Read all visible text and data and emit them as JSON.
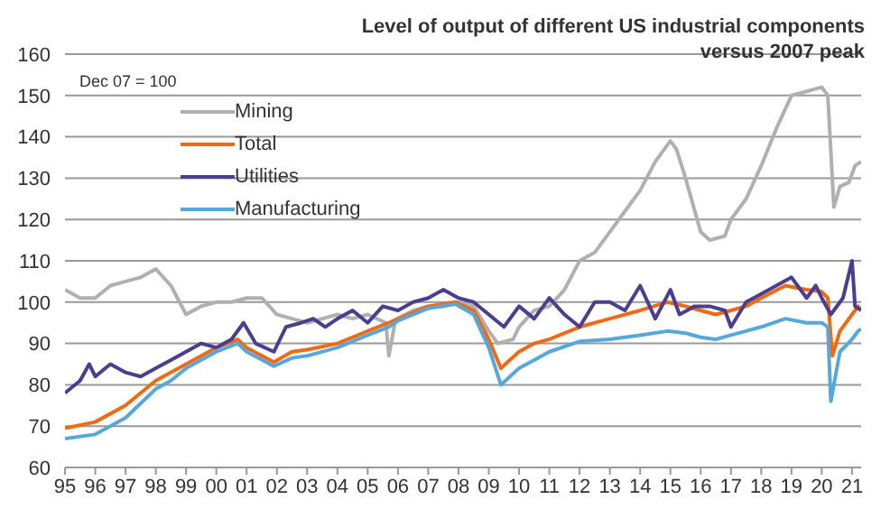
{
  "chart_data": {
    "type": "line",
    "title": "Level of output of different US industrial components versus 2007 peak",
    "annotations": [
      "Dec 07 = 100"
    ],
    "xlim": [
      1995,
      2021.3
    ],
    "xticks": [
      {
        "value": 1995,
        "label": "95"
      },
      {
        "value": 1996,
        "label": "96"
      },
      {
        "value": 1997,
        "label": "97"
      },
      {
        "value": 1998,
        "label": "98"
      },
      {
        "value": 1999,
        "label": "99"
      },
      {
        "value": 2000,
        "label": "00"
      },
      {
        "value": 2001,
        "label": "01"
      },
      {
        "value": 2002,
        "label": "02"
      },
      {
        "value": 2003,
        "label": "03"
      },
      {
        "value": 2004,
        "label": "04"
      },
      {
        "value": 2005,
        "label": "05"
      },
      {
        "value": 2006,
        "label": "06"
      },
      {
        "value": 2007,
        "label": "07"
      },
      {
        "value": 2008,
        "label": "08"
      },
      {
        "value": 2009,
        "label": "09"
      },
      {
        "value": 2010,
        "label": "10"
      },
      {
        "value": 2011,
        "label": "11"
      },
      {
        "value": 2012,
        "label": "12"
      },
      {
        "value": 2013,
        "label": "13"
      },
      {
        "value": 2014,
        "label": "14"
      },
      {
        "value": 2015,
        "label": "15"
      },
      {
        "value": 2016,
        "label": "16"
      },
      {
        "value": 2017,
        "label": "17"
      },
      {
        "value": 2018,
        "label": "18"
      },
      {
        "value": 2019,
        "label": "19"
      },
      {
        "value": 2020,
        "label": "20"
      },
      {
        "value": 2021,
        "label": "21"
      }
    ],
    "ylim": [
      60,
      160
    ],
    "yticks": [
      60,
      70,
      80,
      90,
      100,
      110,
      120,
      130,
      140,
      150,
      160
    ],
    "grid": "y",
    "legend": "top left",
    "marker": "none",
    "line_style": "solid",
    "series": [
      {
        "name": "Mining",
        "color": "#b0b0b0",
        "x": [
          1995,
          1995.5,
          1996,
          1996.5,
          1997,
          1997.5,
          1998,
          1998.5,
          1999,
          1999.5,
          2000,
          2000.5,
          2001,
          2001.5,
          2002,
          2002.5,
          2003,
          2003.5,
          2004,
          2004.5,
          2005,
          2005.6,
          2005.7,
          2005.9,
          2006,
          2006.5,
          2007,
          2007.5,
          2008,
          2008.5,
          2009,
          2009.3,
          2009.8,
          2010,
          2010.5,
          2011,
          2011.5,
          2012,
          2012.5,
          2013,
          2013.5,
          2014,
          2014.5,
          2015,
          2015.2,
          2015.5,
          2016,
          2016.3,
          2016.8,
          2017,
          2017.5,
          2018,
          2018.5,
          2019,
          2019.5,
          2020,
          2020.2,
          2020.4,
          2020.6,
          2020.9,
          2021.1,
          2021.3
        ],
        "values": [
          103,
          101,
          101,
          104,
          105,
          106,
          108,
          104,
          97,
          99,
          100,
          100,
          101,
          101,
          97,
          96,
          95,
          96,
          97,
          96,
          97,
          95,
          87,
          95,
          96,
          98,
          99,
          99,
          100,
          99,
          93,
          90,
          91,
          94,
          98,
          99,
          103,
          110,
          112,
          117,
          122,
          127,
          134,
          139,
          137,
          130,
          117,
          115,
          116,
          120,
          125,
          133,
          142,
          150,
          151,
          152,
          150,
          123,
          128,
          129,
          133,
          134
        ]
      },
      {
        "name": "Total",
        "color": "#f06a12",
        "x": [
          1995,
          1996,
          1997,
          1998,
          1999,
          2000,
          2000.7,
          2001,
          2001.9,
          2002.5,
          2003,
          2004,
          2005,
          2005.7,
          2006,
          2007,
          2007.9,
          2008.5,
          2009,
          2009.4,
          2010,
          2010.5,
          2011,
          2012,
          2013,
          2014,
          2014.9,
          2015.5,
          2016,
          2016.5,
          2017,
          2017.5,
          2018,
          2018.8,
          2019.5,
          2020,
          2020.2,
          2020.35,
          2020.6,
          2021,
          2021.2,
          2021.3
        ],
        "values": [
          69.5,
          71,
          75,
          81,
          85,
          89,
          91,
          89,
          85.5,
          88,
          88.5,
          90,
          93,
          95,
          96,
          99,
          100,
          98,
          91,
          84,
          88,
          90,
          91,
          94,
          96,
          98,
          100,
          99,
          98,
          97,
          98,
          99,
          101,
          104,
          103,
          102.5,
          101,
          87,
          93,
          97,
          99,
          98
        ]
      },
      {
        "name": "Utilities",
        "color": "#4b3d8f",
        "x": [
          1995,
          1995.5,
          1995.8,
          1996,
          1996.5,
          1997,
          1997.5,
          1998,
          1998.5,
          1999,
          1999.5,
          2000,
          2000.5,
          2000.9,
          2001.3,
          2001.9,
          2002.3,
          2002.8,
          2003.2,
          2003.6,
          2004,
          2004.5,
          2005,
          2005.5,
          2006,
          2006.5,
          2007,
          2007.5,
          2008,
          2008.5,
          2009,
          2009.5,
          2010,
          2010.5,
          2011,
          2011.5,
          2012,
          2012.5,
          2013,
          2013.5,
          2014,
          2014.5,
          2015,
          2015.3,
          2015.8,
          2016.3,
          2016.8,
          2017,
          2017.5,
          2018,
          2018.5,
          2019,
          2019.5,
          2019.8,
          2020,
          2020.3,
          2020.7,
          2021,
          2021.1,
          2021.3
        ],
        "values": [
          78,
          81,
          85,
          82,
          85,
          83,
          82,
          84,
          86,
          88,
          90,
          89,
          91,
          95,
          90,
          88,
          94,
          95,
          96,
          94,
          96,
          98,
          95,
          99,
          98,
          100,
          101,
          103,
          101,
          100,
          97,
          94,
          99,
          96,
          101,
          97,
          94,
          100,
          100,
          98,
          104,
          96,
          103,
          97,
          99,
          99,
          98,
          94,
          100,
          102,
          104,
          106,
          101,
          104,
          101,
          97,
          101,
          110,
          99,
          98
        ]
      },
      {
        "name": "Manufacturing",
        "color": "#56a8dc",
        "x": [
          1995,
          1996,
          1997,
          1998,
          1998.5,
          1999,
          2000,
          2000.7,
          2001,
          2001.9,
          2002.5,
          2003,
          2004,
          2005,
          2005.7,
          2006,
          2007,
          2007.9,
          2008.5,
          2009,
          2009.4,
          2010,
          2010.5,
          2011,
          2012,
          2013,
          2014,
          2014.9,
          2015.5,
          2016,
          2016.5,
          2017,
          2017.5,
          2018,
          2018.8,
          2019.5,
          2020,
          2020.2,
          2020.3,
          2020.6,
          2021,
          2021.2,
          2021.3
        ],
        "values": [
          67,
          68,
          72,
          79,
          81,
          84,
          88,
          90,
          88,
          84.5,
          86.5,
          87,
          89,
          92,
          94,
          95.5,
          98.5,
          99.5,
          97,
          89,
          80,
          84,
          86,
          88,
          90.5,
          91,
          92,
          93,
          92.5,
          91.5,
          91,
          92,
          93,
          94,
          96,
          95,
          95,
          94,
          76,
          88,
          91,
          93,
          93.5
        ]
      }
    ]
  }
}
